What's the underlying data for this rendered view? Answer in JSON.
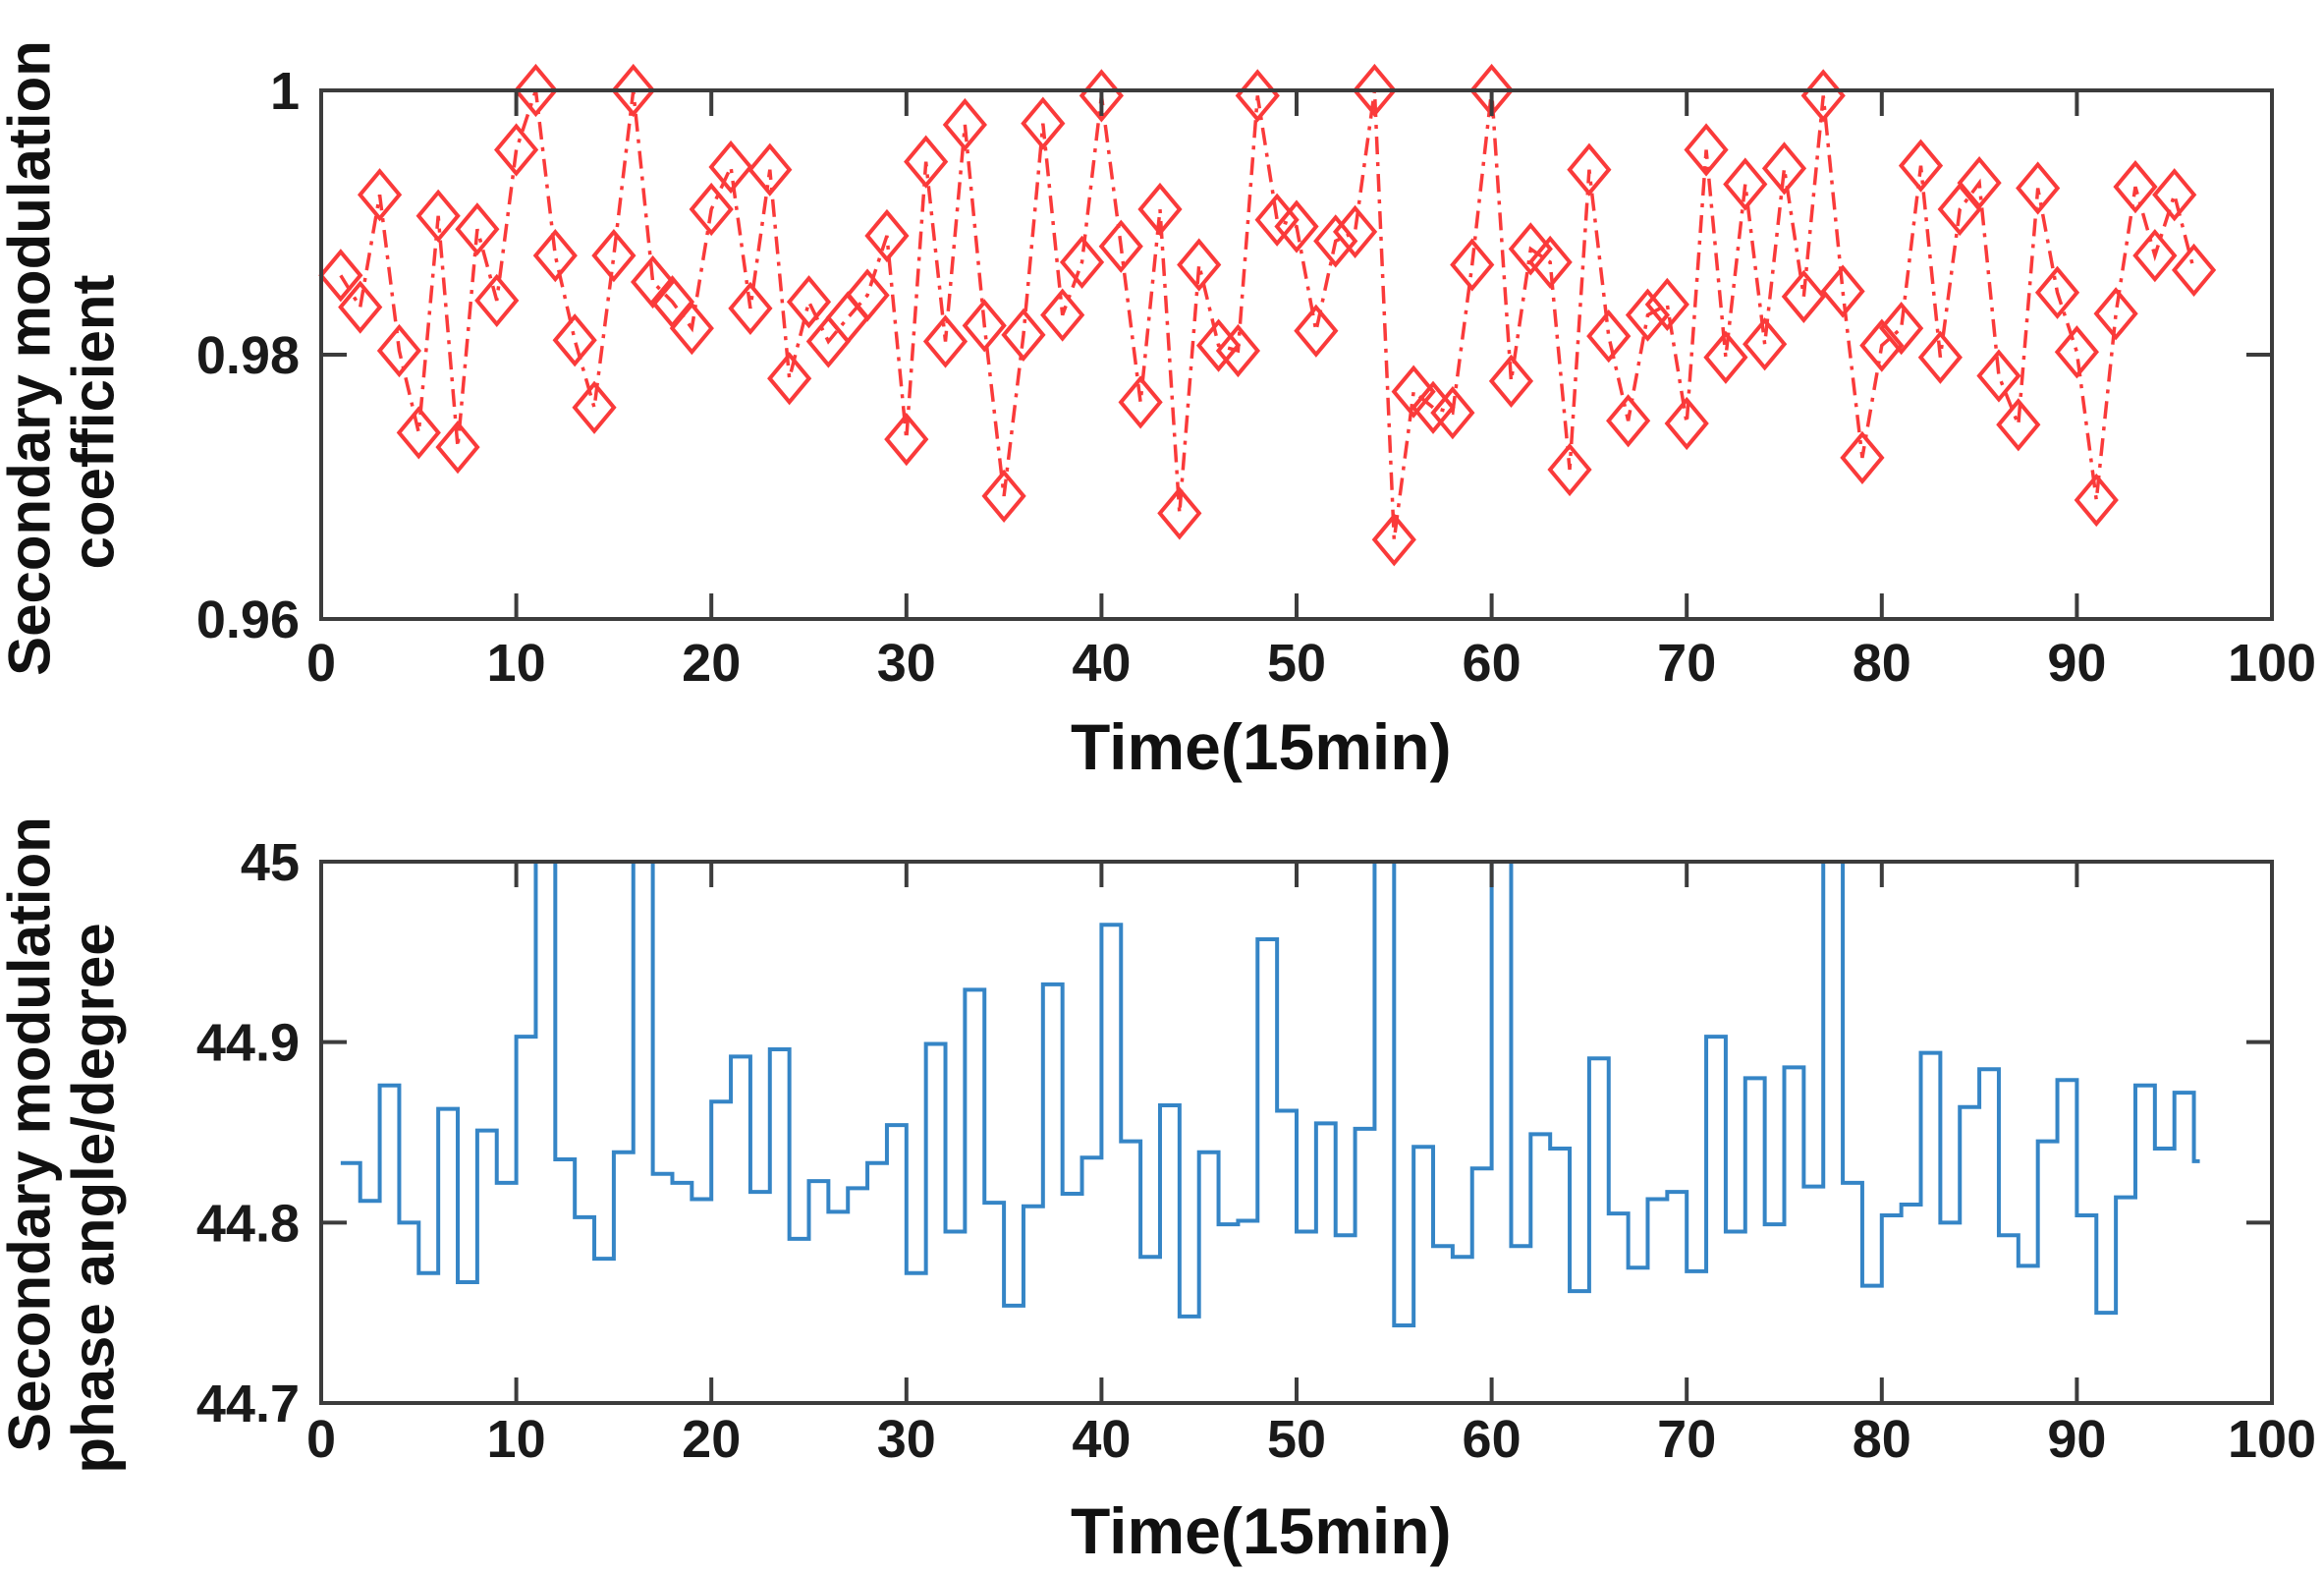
{
  "figure": {
    "background": "#ffffff",
    "axis_color": "#3c3c3c",
    "text_color": "#1a1a1a"
  },
  "chart_data": [
    {
      "type": "line",
      "name": "secondary-modulation-coefficient",
      "xlabel": "Time(15min)",
      "ylabel_line1": "Secondary modulation",
      "ylabel_line2": "coefficient",
      "line_color": "#fa3a3a",
      "line_style": "dash-dot",
      "marker": "open-diamond",
      "grid": false,
      "legend": null,
      "xlim": [
        0,
        100
      ],
      "ylim": [
        0.96,
        1.0
      ],
      "x_ticks": [
        0,
        10,
        20,
        30,
        40,
        50,
        60,
        70,
        80,
        90,
        100
      ],
      "x_tick_labels": [
        "0",
        "10",
        "20",
        "30",
        "40",
        "50",
        "60",
        "70",
        "80",
        "90",
        "100"
      ],
      "y_ticks": [
        1,
        0.98,
        0.96
      ],
      "y_tick_labels": [
        "1",
        "0.98",
        "0.96"
      ],
      "x_values": [
        1,
        2,
        3,
        4,
        5,
        6,
        7,
        8,
        9,
        10,
        11,
        12,
        13,
        14,
        15,
        16,
        17,
        18,
        19,
        20,
        21,
        22,
        23,
        24,
        25,
        26,
        27,
        28,
        29,
        30,
        31,
        32,
        33,
        34,
        35,
        36,
        37,
        38,
        39,
        40,
        41,
        42,
        43,
        44,
        45,
        46,
        47,
        48,
        49,
        50,
        51,
        52,
        53,
        54,
        55,
        56,
        57,
        58,
        59,
        60,
        61,
        62,
        63,
        64,
        65,
        66,
        67,
        68,
        69,
        70,
        71,
        72,
        73,
        74,
        75,
        76,
        77,
        78,
        79,
        80,
        81,
        82,
        83,
        84,
        85,
        86,
        87,
        88,
        89,
        90,
        91,
        92,
        93,
        94,
        95,
        96
      ],
      "values": [
        0.986,
        0.9836,
        0.9921,
        0.9803,
        0.9741,
        0.9905,
        0.973,
        0.9895,
        0.9841,
        0.9955,
        1.0,
        0.9875,
        0.9811,
        0.976,
        0.9875,
        1.0,
        0.9855,
        0.984,
        0.982,
        0.991,
        0.9942,
        0.9835,
        0.994,
        0.9782,
        0.984,
        0.981,
        0.9828,
        0.9845,
        0.989,
        0.9736,
        0.9946,
        0.981,
        0.9974,
        0.9822,
        0.9693,
        0.9815,
        0.9975,
        0.983,
        0.987,
        0.9996,
        0.9882,
        0.9764,
        0.991,
        0.968,
        0.9868,
        0.9807,
        0.9803,
        0.9996,
        0.9902,
        0.9897,
        0.9818,
        0.9886,
        0.9893,
        1.0,
        0.966,
        0.9772,
        0.976,
        0.9756,
        0.9868,
        1.0,
        0.978,
        0.988,
        0.987,
        0.9713,
        0.994,
        0.9814,
        0.975,
        0.983,
        0.9838,
        0.9748,
        0.9955,
        0.9798,
        0.9929,
        0.9808,
        0.9941,
        0.9844,
        0.9996,
        0.9848,
        0.9722,
        0.9807,
        0.982,
        0.9943,
        0.9798,
        0.991,
        0.993,
        0.9784,
        0.9747,
        0.9926,
        0.9847,
        0.9802,
        0.969,
        0.9831,
        0.9927,
        0.9875,
        0.9921,
        0.9864
      ]
    },
    {
      "type": "area",
      "render_as": "stairs",
      "name": "secondary-modulation-phase-angle",
      "xlabel": "Time(15min)",
      "ylabel_line1": "Secondary modulation",
      "ylabel_line2": "phase angle/degree",
      "line_color": "#3585c6",
      "line_style": "solid",
      "marker": "none",
      "grid": false,
      "legend": null,
      "xlim": [
        0,
        100
      ],
      "ylim": [
        44.7,
        45.0
      ],
      "x_ticks": [
        0,
        10,
        20,
        30,
        40,
        50,
        60,
        70,
        80,
        90,
        100
      ],
      "x_tick_labels": [
        "0",
        "10",
        "20",
        "30",
        "40",
        "50",
        "60",
        "70",
        "80",
        "90",
        "100"
      ],
      "y_ticks": [
        45,
        44.9,
        44.8,
        44.7
      ],
      "y_tick_labels": [
        "45",
        "44.9",
        "44.8",
        "44.7"
      ],
      "clipped_above_top_at_x": [
        11,
        16,
        54,
        60,
        77
      ],
      "x_values": [
        1,
        2,
        3,
        4,
        5,
        6,
        7,
        8,
        9,
        10,
        11,
        12,
        13,
        14,
        15,
        16,
        17,
        18,
        19,
        20,
        21,
        22,
        23,
        24,
        25,
        26,
        27,
        28,
        29,
        30,
        31,
        32,
        33,
        34,
        35,
        36,
        37,
        38,
        39,
        40,
        41,
        42,
        43,
        44,
        45,
        46,
        47,
        48,
        49,
        50,
        51,
        52,
        53,
        54,
        55,
        56,
        57,
        58,
        59,
        60,
        61,
        62,
        63,
        64,
        65,
        66,
        67,
        68,
        69,
        70,
        71,
        72,
        73,
        74,
        75,
        76,
        77,
        78,
        79,
        80,
        81,
        82,
        83,
        84,
        85,
        86,
        87,
        88,
        89,
        90,
        91,
        92,
        93,
        94,
        95,
        96
      ],
      "values": [
        44.833,
        44.812,
        44.876,
        44.8,
        44.772,
        44.863,
        44.767,
        44.851,
        44.822,
        44.903,
        45.06,
        44.835,
        44.803,
        44.78,
        44.839,
        45.06,
        44.827,
        44.822,
        44.813,
        44.867,
        44.892,
        44.817,
        44.896,
        44.791,
        44.823,
        44.806,
        44.819,
        44.833,
        44.854,
        44.772,
        44.899,
        44.795,
        44.929,
        44.811,
        44.754,
        44.809,
        44.932,
        44.816,
        44.836,
        44.965,
        44.845,
        44.781,
        44.865,
        44.748,
        44.839,
        44.799,
        44.801,
        44.957,
        44.862,
        44.795,
        44.855,
        44.793,
        44.852,
        45.06,
        44.743,
        44.842,
        44.787,
        44.781,
        44.83,
        45.06,
        44.787,
        44.849,
        44.841,
        44.762,
        44.891,
        44.805,
        44.775,
        44.813,
        44.817,
        44.773,
        44.903,
        44.795,
        44.88,
        44.799,
        44.886,
        44.82,
        45.06,
        44.822,
        44.765,
        44.804,
        44.81,
        44.894,
        44.8,
        44.864,
        44.885,
        44.793,
        44.776,
        44.845,
        44.879,
        44.804,
        44.75,
        44.814,
        44.876,
        44.841,
        44.872,
        44.834
      ]
    }
  ]
}
